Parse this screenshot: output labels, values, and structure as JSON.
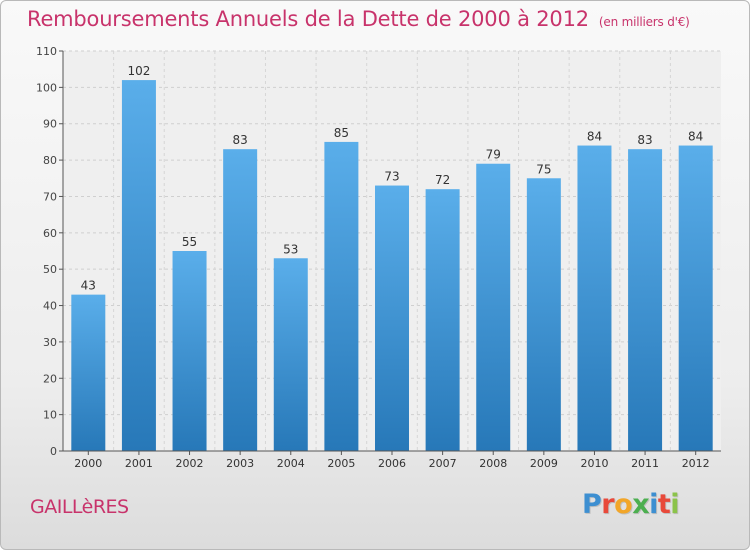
{
  "chart_data": {
    "type": "bar",
    "title": "Remboursements Annuels de la Dette de 2000 à 2012",
    "subtitle": "(en milliers d'€)",
    "categories": [
      "2000",
      "2001",
      "2002",
      "2003",
      "2004",
      "2005",
      "2006",
      "2007",
      "2008",
      "2009",
      "2010",
      "2011",
      "2012"
    ],
    "values": [
      43,
      102,
      55,
      83,
      53,
      85,
      73,
      72,
      79,
      75,
      84,
      83,
      84
    ],
    "ylim": [
      0,
      110
    ],
    "yticks": [
      0,
      10,
      20,
      30,
      40,
      50,
      60,
      70,
      80,
      90,
      100,
      110
    ],
    "xlabel": "",
    "ylabel": "",
    "grid": true,
    "bar_color": "#3f96d6"
  },
  "footer": {
    "town": "GAILLèRES",
    "logo": "Proxiti"
  },
  "colors": {
    "title": "#c8336b",
    "logo_letters": [
      "#3d8fd1",
      "#e8493a",
      "#f2a629",
      "#4caf50",
      "#3d8fd1",
      "#e8493a",
      "#8bc34a"
    ]
  }
}
